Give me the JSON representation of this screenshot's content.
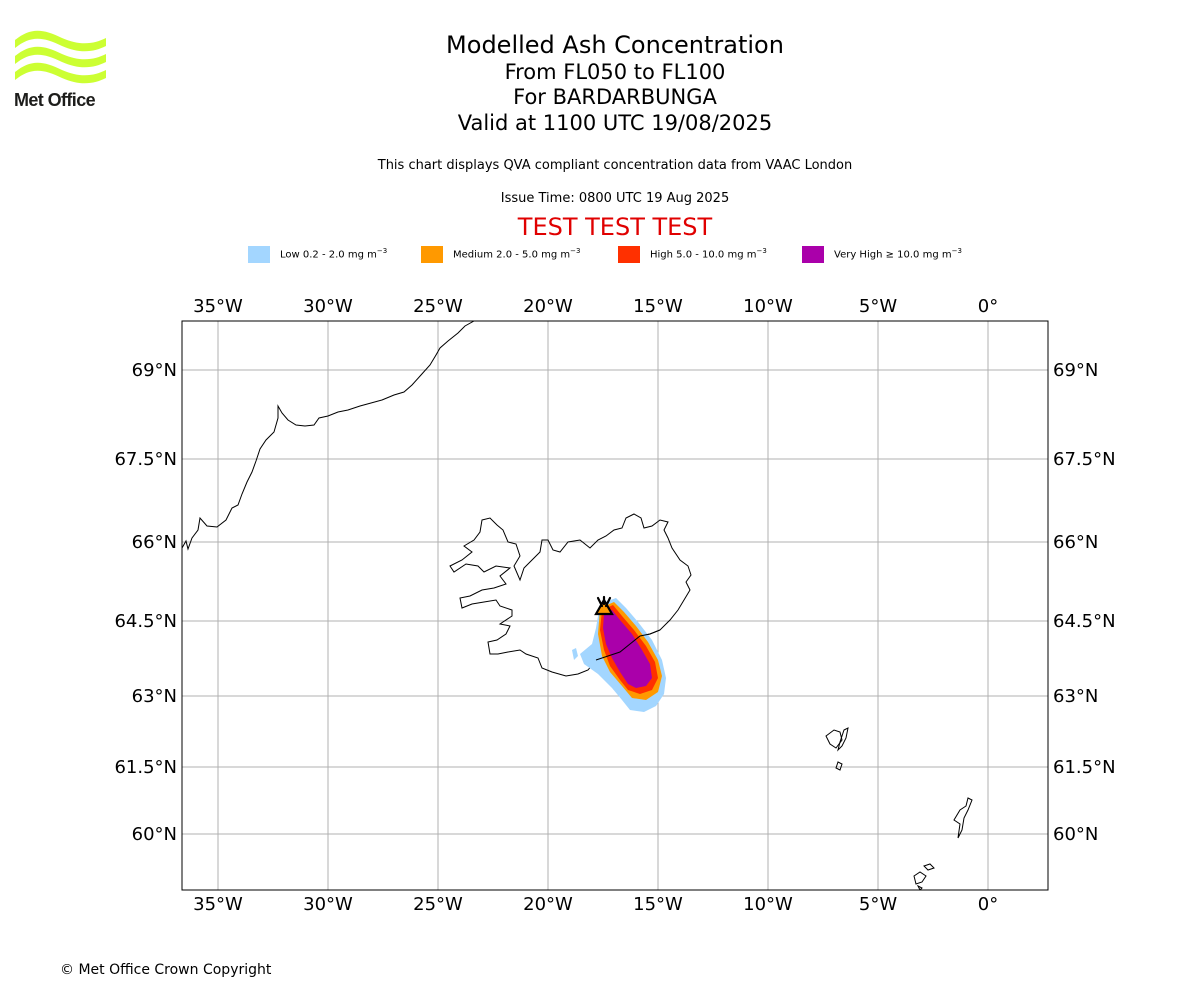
{
  "brand": {
    "name": "Met Office",
    "logo_color": "#ccff33"
  },
  "header": {
    "title": "Modelled Ash Concentration",
    "levels": "From FL050 to FL100",
    "volcano": "For BARDARBUNGA",
    "valid": "Valid at 1100 UTC 19/08/2025",
    "compliance": "This chart displays QVA compliant concentration data from VAAC London",
    "issue": "Issue Time: 0800 UTC 19 Aug 2025",
    "test_banner": "TEST TEST TEST"
  },
  "legend": [
    {
      "label": "Low 0.2 - 2.0 mg m",
      "color": "#a3d6ff"
    },
    {
      "label": "Medium 2.0 - 5.0 mg m",
      "color": "#ff9900"
    },
    {
      "label": "High 5.0 - 10.0 mg m",
      "color": "#ff3000"
    },
    {
      "label": "Very High ≥ 10.0 mg m",
      "color": "#aa00aa"
    }
  ],
  "legend_unit_exponent": "−3",
  "map": {
    "lon_ticks": [
      "35°W",
      "30°W",
      "25°W",
      "20°W",
      "15°W",
      "10°W",
      "5°W",
      "0°"
    ],
    "lat_ticks": [
      "69°N",
      "67.5°N",
      "66°N",
      "64.5°N",
      "63°N",
      "61.5°N",
      "60°N"
    ],
    "volcano_marker_icon": "volcano-icon"
  },
  "footer": {
    "copyright": "© Met Office Crown Copyright"
  }
}
